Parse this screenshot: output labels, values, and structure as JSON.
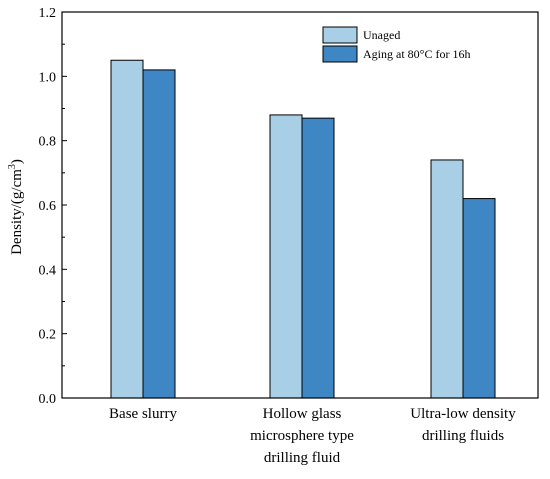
{
  "chart_data": {
    "type": "bar",
    "title": "",
    "xlabel": "",
    "ylabel": "Density/(g/cm",
    "ylabel_sup": "3",
    "ylabel_close": ")",
    "ylim": [
      0.0,
      1.2
    ],
    "yticks": [
      0.0,
      0.2,
      0.4,
      0.6,
      0.8,
      1.0,
      1.2
    ],
    "ytick_labels": [
      "0.0",
      "0.2",
      "0.4",
      "0.6",
      "0.8",
      "1.0",
      "1.2"
    ],
    "categories": [
      "Base slurry",
      "Hollow glass microsphere type drilling fluid",
      "Ultra-low density drilling fluids"
    ],
    "category_label_lines": [
      [
        "Base slurry"
      ],
      [
        "Hollow glass",
        "microsphere type",
        "drilling fluid"
      ],
      [
        "Ultra-low density",
        "drilling fluids"
      ]
    ],
    "series": [
      {
        "name": "Unaged",
        "color": "#a9cfe6",
        "values": [
          1.05,
          0.88,
          0.74
        ]
      },
      {
        "name": "Aging at 80°C for 16h",
        "color": "#3f86c4",
        "values": [
          1.02,
          0.87,
          0.62
        ]
      }
    ],
    "legend_position": "top-right",
    "grid": false
  }
}
